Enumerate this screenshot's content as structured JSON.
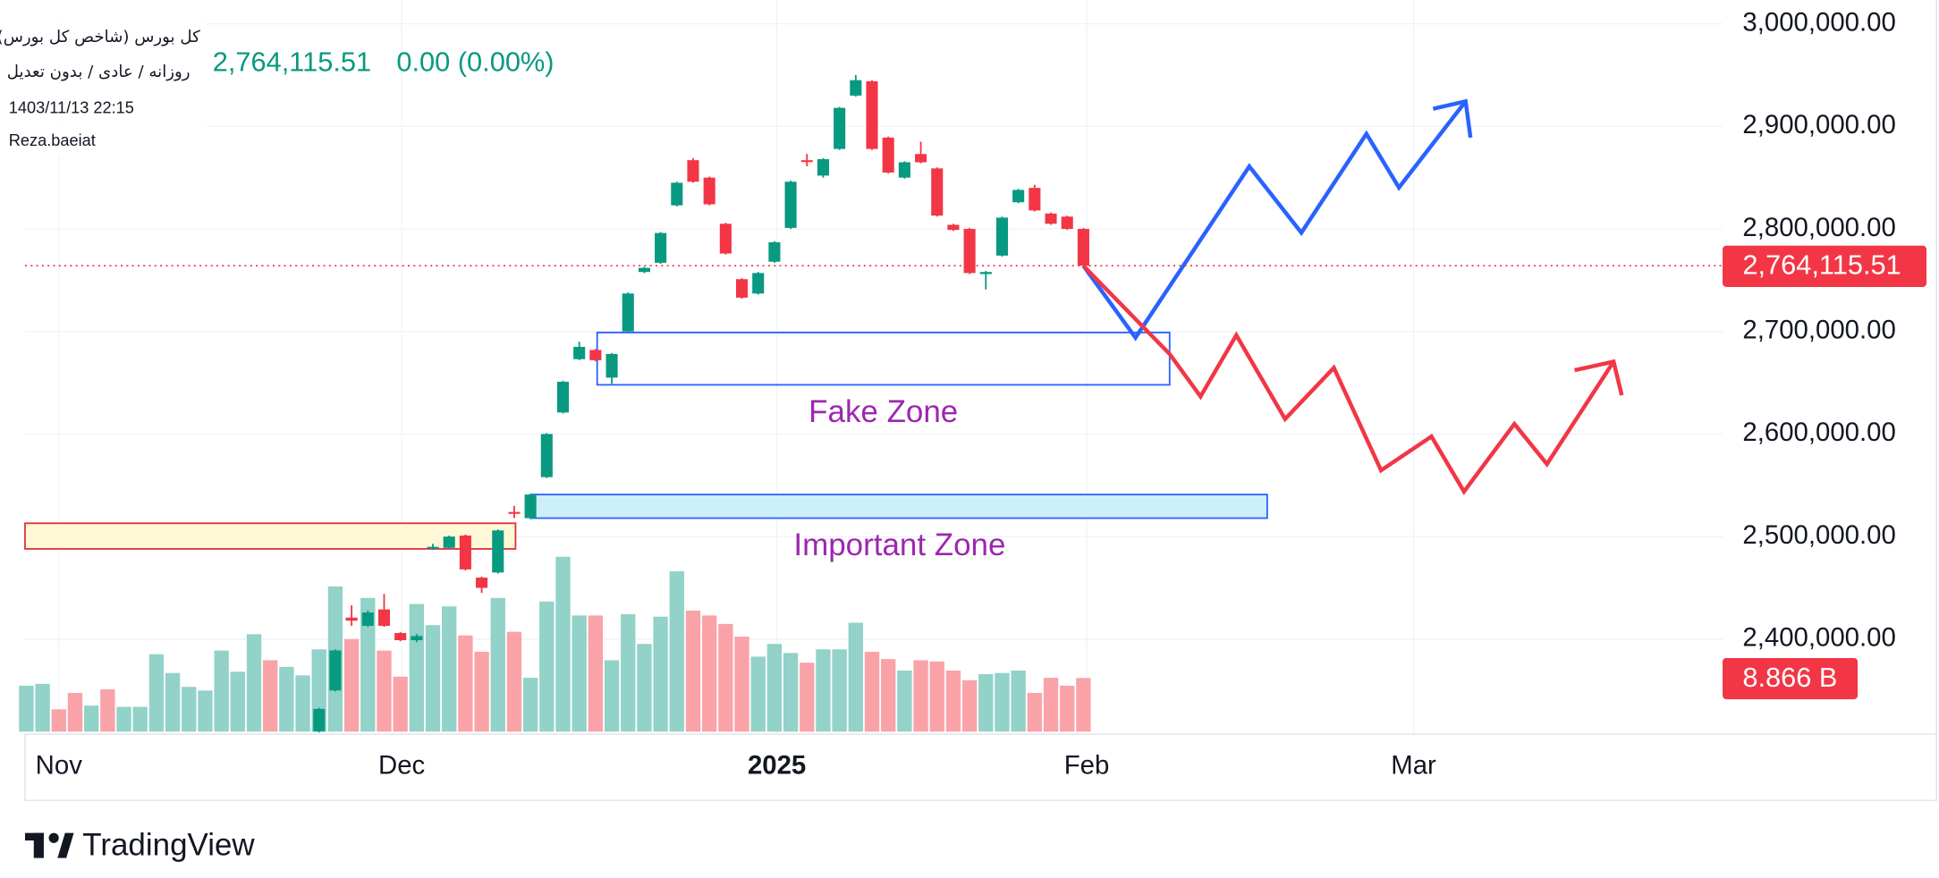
{
  "chart_data": {
    "type": "candlestick",
    "symbol": "کل بورس (شاخص کل بورس)",
    "interval": "روزانه / عادی / بدون تعدیل",
    "datetime": "1403/11/13 22:15",
    "author": "Reza.baeiat",
    "change": "0.00 (0.00%)",
    "last_price": {
      "value": 2764115.51,
      "label": "2,764,115.51"
    },
    "branding": "TradingView",
    "up_color": "#089981",
    "down_color": "#f23645",
    "x": [
      0,
      1,
      2,
      3,
      4,
      5,
      6,
      7,
      8,
      9,
      10,
      11,
      12,
      13,
      14,
      15,
      16,
      17,
      18,
      19,
      20,
      21,
      22,
      23,
      24,
      25,
      26,
      27,
      28,
      29,
      30,
      31,
      32,
      33,
      34,
      35,
      36,
      37,
      38,
      39,
      40,
      41,
      42,
      43,
      44,
      45,
      46,
      47,
      48,
      49,
      50,
      51,
      52,
      53,
      54,
      55,
      56,
      57,
      58,
      59,
      60,
      61,
      62,
      63,
      64,
      65
    ],
    "open": [
      null,
      null,
      null,
      null,
      null,
      null,
      null,
      null,
      null,
      null,
      null,
      null,
      null,
      null,
      null,
      null,
      null,
      null,
      2310000,
      2350000,
      2421000,
      2413000,
      2429000,
      2406000,
      2399000,
      2489000,
      2489000,
      2501000,
      2460000,
      2465000,
      2524000,
      2518000,
      2558000,
      2621000,
      2673000,
      2682000,
      2655000,
      2700000,
      2758000,
      2767000,
      2823000,
      2867000,
      2850000,
      2805000,
      2751000,
      2737000,
      2768000,
      2801000,
      2867000,
      2852000,
      2878000,
      2930000,
      2944000,
      2889000,
      2850000,
      2873000,
      2859000,
      2804000,
      2800000,
      2756000,
      2774000,
      2826000,
      2840000,
      2815000,
      2812000,
      2800000
    ],
    "high": [
      null,
      null,
      null,
      null,
      null,
      null,
      null,
      null,
      null,
      null,
      null,
      null,
      null,
      null,
      null,
      null,
      null,
      null,
      2333000,
      2390000,
      2433000,
      2428000,
      2444000,
      2407000,
      2405000,
      2493000,
      2501000,
      2502000,
      2461000,
      2507000,
      2530000,
      2542000,
      2601000,
      2652000,
      2690000,
      2683000,
      2679000,
      2738000,
      2763000,
      2797000,
      2846000,
      2869000,
      2851000,
      2806000,
      2752000,
      2758000,
      2788000,
      2847000,
      2873000,
      2869000,
      2919000,
      2950000,
      2945000,
      2890000,
      2866000,
      2885000,
      2860000,
      2805000,
      2801000,
      2759000,
      2812000,
      2839000,
      2843000,
      2816000,
      2813000,
      2801000
    ],
    "low": [
      null,
      null,
      null,
      null,
      null,
      null,
      null,
      null,
      null,
      null,
      null,
      null,
      null,
      null,
      null,
      null,
      null,
      null,
      2309000,
      2349000,
      2413000,
      2412000,
      2412000,
      2398000,
      2397000,
      2487000,
      2488000,
      2467000,
      2445000,
      2464000,
      2518000,
      2517000,
      2557000,
      2620000,
      2672000,
      2671000,
      2649000,
      2699000,
      2757000,
      2766000,
      2822000,
      2845000,
      2823000,
      2775000,
      2732000,
      2736000,
      2767000,
      2800000,
      2861000,
      2850000,
      2877000,
      2929000,
      2877000,
      2854000,
      2849000,
      2864000,
      2812000,
      2798000,
      2756000,
      2741000,
      2773000,
      2825000,
      2817000,
      2804000,
      2799000,
      2763000
    ],
    "close": [
      null,
      null,
      null,
      null,
      null,
      null,
      null,
      null,
      null,
      null,
      null,
      null,
      null,
      null,
      null,
      null,
      null,
      null,
      2332000,
      2389000,
      2418000,
      2426000,
      2413000,
      2399000,
      2403000,
      2490000,
      2500000,
      2468000,
      2450000,
      2506000,
      2523000,
      2541000,
      2600000,
      2651000,
      2685000,
      2672000,
      2678000,
      2737000,
      2762000,
      2796000,
      2845000,
      2846000,
      2824000,
      2776000,
      2733000,
      2757000,
      2787000,
      2846000,
      2866000,
      2868000,
      2918000,
      2945000,
      2878000,
      2855000,
      2865000,
      2865000,
      2813000,
      2799000,
      2757000,
      2758000,
      2811000,
      2838000,
      2818000,
      2805000,
      2800000,
      2764115.51
    ],
    "volume": {
      "label": "8.866 B",
      "ylim": [
        0,
        31
      ],
      "values": [
        7.6,
        7.9,
        3.7,
        6.4,
        4.3,
        7.0,
        4.1,
        4.1,
        12.8,
        9.7,
        7.4,
        6.8,
        13.4,
        9.9,
        16.1,
        11.8,
        10.7,
        9.3,
        13.6,
        24.0,
        15.3,
        22.1,
        13.4,
        9.1,
        21.1,
        17.6,
        20.7,
        15.9,
        13.2,
        22.1,
        16.5,
        8.9,
        21.5,
        28.9,
        19.2,
        19.2,
        11.8,
        19.4,
        14.5,
        19.0,
        26.5,
        20.0,
        19.2,
        17.8,
        15.7,
        12.4,
        14.5,
        13.0,
        11.4,
        13.6,
        13.6,
        18.0,
        13.2,
        12.0,
        10.1,
        11.8,
        11.6,
        10.1,
        8.5,
        9.5,
        9.7,
        10.1,
        6.4,
        8.9,
        7.6,
        8.866
      ],
      "colors": [
        "#92d2c8",
        "#92d2c8",
        "#f9a3a9",
        "#f9a3a9",
        "#92d2c8",
        "#f9a3a9",
        "#92d2c8",
        "#92d2c8",
        "#92d2c8",
        "#92d2c8",
        "#92d2c8",
        "#92d2c8",
        "#92d2c8",
        "#92d2c8",
        "#92d2c8",
        "#f9a3a9",
        "#92d2c8",
        "#92d2c8",
        "#92d2c8",
        "#92d2c8",
        "#f9a3a9",
        "#92d2c8",
        "#f9a3a9",
        "#f9a3a9",
        "#92d2c8",
        "#92d2c8",
        "#92d2c8",
        "#f9a3a9",
        "#f9a3a9",
        "#92d2c8",
        "#f9a3a9",
        "#92d2c8",
        "#92d2c8",
        "#92d2c8",
        "#92d2c8",
        "#f9a3a9",
        "#92d2c8",
        "#92d2c8",
        "#92d2c8",
        "#92d2c8",
        "#92d2c8",
        "#f9a3a9",
        "#f9a3a9",
        "#f9a3a9",
        "#f9a3a9",
        "#92d2c8",
        "#92d2c8",
        "#92d2c8",
        "#f9a3a9",
        "#92d2c8",
        "#92d2c8",
        "#92d2c8",
        "#f9a3a9",
        "#f9a3a9",
        "#92d2c8",
        "#f9a3a9",
        "#f9a3a9",
        "#f9a3a9",
        "#f9a3a9",
        "#92d2c8",
        "#92d2c8",
        "#92d2c8",
        "#f9a3a9",
        "#f9a3a9",
        "#f9a3a9",
        "#f9a3a9"
      ]
    },
    "xlim": [
      -0.08,
      104.3
    ],
    "ylim": [
      2309800,
      3023200
    ],
    "xticks": [
      {
        "value": 2.0,
        "label": "Nov"
      },
      {
        "value": 23.08,
        "label": "Dec"
      },
      {
        "value": 46.15,
        "label": "2025",
        "emphasis": true
      },
      {
        "value": 65.2,
        "label": "Feb"
      },
      {
        "value": 85.3,
        "label": "Mar"
      }
    ],
    "yticks": [
      {
        "value": 2400000,
        "label": "2,400,000.00"
      },
      {
        "value": 2500000,
        "label": "2,500,000.00"
      },
      {
        "value": 2600000,
        "label": "2,600,000.00"
      },
      {
        "value": 2700000,
        "label": "2,700,000.00"
      },
      {
        "value": 2800000,
        "label": "2,800,000.00"
      },
      {
        "value": 2900000,
        "label": "2,900,000.00"
      },
      {
        "value": 3000000,
        "label": "3,000,000.00"
      }
    ],
    "grid": true,
    "zones": [
      {
        "x": [
          -0.08,
          30.08
        ],
        "y": [
          2513000,
          2488000
        ],
        "fill": "#fff8d6",
        "stroke": "#e0323f"
      },
      {
        "x": [
          31.1,
          76.3
        ],
        "y": [
          2541000,
          2518000
        ],
        "fill": "#cdeffa",
        "stroke": "#2962ff",
        "label": "Important Zone"
      },
      {
        "x": [
          35.1,
          70.3
        ],
        "y": [
          2699000,
          2648000
        ],
        "fill": "none",
        "stroke": "#2962ff",
        "label": "Fake Zone"
      }
    ],
    "zone_label_color": "#9c27b0",
    "projections": [
      {
        "color": "#2962ff",
        "points": [
          [
            65,
            2764000
          ],
          [
            68.2,
            2693900
          ],
          [
            75.2,
            2861000
          ],
          [
            78.4,
            2796300
          ],
          [
            82.4,
            2892700
          ],
          [
            84.4,
            2840300
          ],
          [
            88.5,
            2924400
          ]
        ],
        "arrow": [
          [
            86.5,
            2917100
          ],
          [
            88.5,
            2924400
          ],
          [
            88.8,
            2889000
          ]
        ]
      },
      {
        "color": "#f23645",
        "points": [
          [
            65,
            2764000
          ],
          [
            70.3,
            2678000
          ],
          [
            72.2,
            2636600
          ],
          [
            74.4,
            2696400
          ],
          [
            77.4,
            2614600
          ],
          [
            80.4,
            2664600
          ],
          [
            83.3,
            2564600
          ],
          [
            86.4,
            2597600
          ],
          [
            88.4,
            2543900
          ],
          [
            91.5,
            2609800
          ],
          [
            93.5,
            2570700
          ],
          [
            97.6,
            2670600
          ]
        ],
        "arrow": [
          [
            95.2,
            2662200
          ],
          [
            97.6,
            2670600
          ],
          [
            98.1,
            2637800
          ]
        ]
      }
    ]
  }
}
